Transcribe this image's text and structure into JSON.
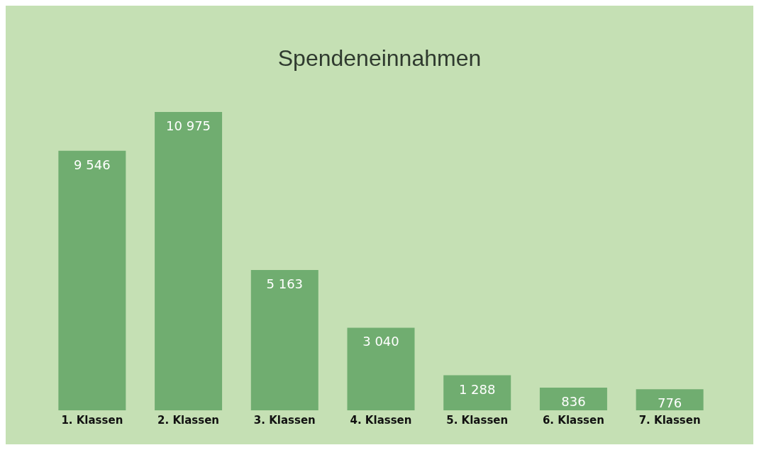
{
  "chart_data": {
    "type": "bar",
    "title": "Spendeneinnahmen",
    "categories": [
      "1. Klassen",
      "2. Klassen",
      "3. Klassen",
      "4. Klassen",
      "5. Klassen",
      "6. Klassen",
      "7. Klassen"
    ],
    "values": [
      9546,
      10975,
      5163,
      3040,
      1288,
      836,
      776
    ],
    "value_labels": [
      "9 546",
      "10 975",
      "5 163",
      "3 040",
      "1 288",
      "836",
      "776"
    ],
    "color": "#70ad70",
    "grid": false,
    "legend": false
  }
}
